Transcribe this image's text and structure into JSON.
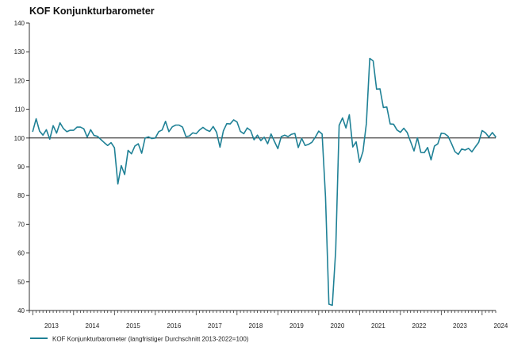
{
  "chart_data": {
    "type": "line",
    "title": "KOF Konjunkturbarometer",
    "xlabel": "",
    "ylabel": "",
    "ylim": [
      40,
      140
    ],
    "y_ticks": [
      40,
      50,
      60,
      70,
      80,
      90,
      100,
      110,
      120,
      130,
      140
    ],
    "x_tick_labels": [
      "2013",
      "2014",
      "2015",
      "2016",
      "2017",
      "2018",
      "2019",
      "2020",
      "2021",
      "2022",
      "2023",
      "2024"
    ],
    "x_range": [
      "2012-12",
      "2024-05"
    ],
    "reference_line": 100,
    "grid": false,
    "legend_position": "bottom-left",
    "line_color": "#1f8196",
    "series": [
      {
        "name": "KOF Konjunkturbarometer (langfristiger Durchschnitt 2013-2022=100)",
        "start": "2013-01",
        "frequency": "monthly",
        "values": [
          102.3,
          106.7,
          102.4,
          101.0,
          102.9,
          99.6,
          104.3,
          101.7,
          105.3,
          103.3,
          102.2,
          102.7,
          102.7,
          103.8,
          103.8,
          103.2,
          100.3,
          102.9,
          100.9,
          100.6,
          99.5,
          98.4,
          97.4,
          98.4,
          96.6,
          84.0,
          90.4,
          87.3,
          95.7,
          94.5,
          97.2,
          98.0,
          94.7,
          100.0,
          100.4,
          99.8,
          100.0,
          102.2,
          102.8,
          105.8,
          102.2,
          103.9,
          104.5,
          104.5,
          103.8,
          100.5,
          100.7,
          101.8,
          101.5,
          102.8,
          103.7,
          102.8,
          102.3,
          104.0,
          102.0,
          96.8,
          102.5,
          105.0,
          104.9,
          106.3,
          105.6,
          102.3,
          101.5,
          103.5,
          102.6,
          99.4,
          101.0,
          99.1,
          100.3,
          98.0,
          101.4,
          98.8,
          96.3,
          100.5,
          101.0,
          100.5,
          101.3,
          101.6,
          96.7,
          99.9,
          97.4,
          97.8,
          98.5,
          100.3,
          102.4,
          101.4,
          79.5,
          42.2,
          41.8,
          61.1,
          104.4,
          107.0,
          103.5,
          108.1,
          96.9,
          98.7,
          91.6,
          95.3,
          105.0,
          127.7,
          126.8,
          117.0,
          117.1,
          110.6,
          110.8,
          104.9,
          104.8,
          102.8,
          102.0,
          103.4,
          101.9,
          98.7,
          95.5,
          100.1,
          95.0,
          94.9,
          96.7,
          92.4,
          97.2,
          98.0,
          101.7,
          101.5,
          100.6,
          98.1,
          95.3,
          94.3,
          96.2,
          95.8,
          96.4,
          95.2,
          96.9,
          98.5,
          102.6,
          101.8,
          100.3,
          101.9,
          100.4
        ]
      }
    ]
  },
  "legend": {
    "label": "KOF Konjunkturbarometer (langfristiger Durchschnitt 2013-2022=100)"
  }
}
